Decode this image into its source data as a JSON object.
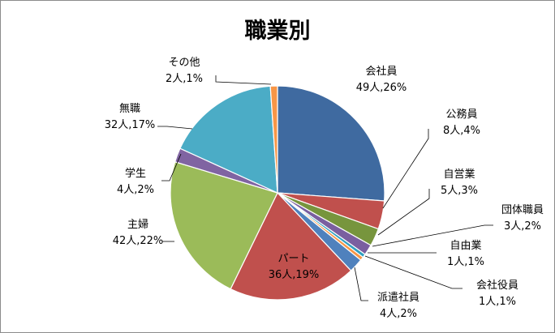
{
  "chart_data": {
    "type": "pie",
    "title": "職業別",
    "unit": "人",
    "slices": [
      {
        "name": "会社員",
        "value": 49,
        "percent": "26%",
        "color": "#3f6aa0"
      },
      {
        "name": "公務員",
        "value": 8,
        "percent": "4%",
        "color": "#c0504d"
      },
      {
        "name": "自営業",
        "value": 5,
        "percent": "3%",
        "color": "#77953d"
      },
      {
        "name": "団体職員",
        "value": 3,
        "percent": "2%",
        "color": "#7a5fa0"
      },
      {
        "name": "自由業",
        "value": 1,
        "percent": "1%",
        "color": "#31a0c0"
      },
      {
        "name": "会社役員",
        "value": 1,
        "percent": "1%",
        "color": "#f79646"
      },
      {
        "name": "派遣社員",
        "value": 4,
        "percent": "2%",
        "color": "#4f81bd"
      },
      {
        "name": "パート",
        "value": 36,
        "percent": "19%",
        "color": "#c0504d"
      },
      {
        "name": "主婦",
        "value": 42,
        "percent": "22%",
        "color": "#9bbb59"
      },
      {
        "name": "学生",
        "value": 4,
        "percent": "2%",
        "color": "#8064a2"
      },
      {
        "name": "無職",
        "value": 32,
        "percent": "17%",
        "color": "#4bacc6"
      },
      {
        "name": "その他",
        "value": 2,
        "percent": "1%",
        "color": "#f79646"
      }
    ],
    "start": "12 o'clock",
    "direction": "clockwise",
    "legend": "none"
  }
}
